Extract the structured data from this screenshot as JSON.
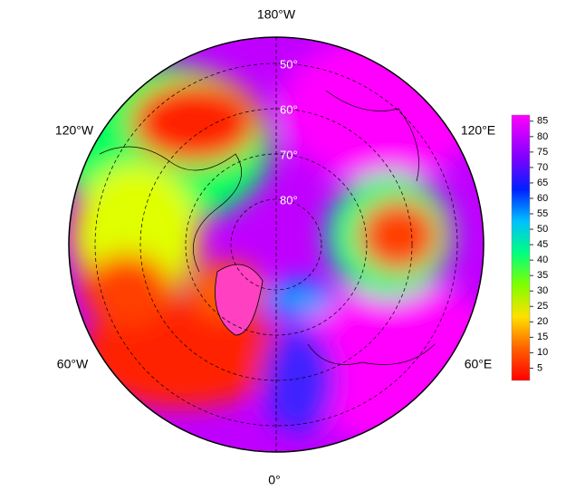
{
  "map": {
    "longitude_labels": {
      "top": "180°W",
      "upper_left": "120°W",
      "upper_right": "120°E",
      "lower_left": "60°W",
      "lower_right": "60°E",
      "bottom": "0°"
    },
    "latitude_labels": [
      {
        "value": 50,
        "label": "50°"
      },
      {
        "value": 60,
        "label": "60°"
      },
      {
        "value": 70,
        "label": "70°"
      },
      {
        "value": 80,
        "label": "80°"
      }
    ],
    "colorbar": {
      "lim": [
        1,
        87
      ],
      "ticks": [
        5,
        10,
        15,
        20,
        25,
        30,
        35,
        40,
        45,
        50,
        55,
        60,
        65,
        70,
        75,
        80,
        85
      ]
    }
  }
}
